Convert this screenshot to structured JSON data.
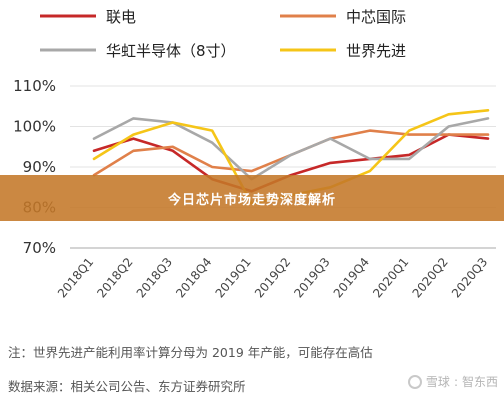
{
  "chart_data": {
    "type": "line",
    "title": "",
    "categories": [
      "2018Q1",
      "2018Q2",
      "2018Q3",
      "2018Q4",
      "2019Q1",
      "2019Q2",
      "2019Q3",
      "2019Q4",
      "2020Q1",
      "2020Q2",
      "2020Q3"
    ],
    "series": [
      {
        "name": "联电",
        "color": "#c62828",
        "values": [
          94,
          97,
          94,
          87,
          84,
          88,
          91,
          92,
          93,
          98,
          97
        ]
      },
      {
        "name": "中芯国际",
        "color": "#e0804a",
        "values": [
          88,
          94,
          95,
          90,
          89,
          93,
          97,
          99,
          98,
          98,
          98
        ]
      },
      {
        "name": "华虹半导体（8寸）",
        "color": "#a8a8a8",
        "values": [
          97,
          102,
          101,
          96,
          87,
          93,
          97,
          92,
          92,
          100,
          102
        ]
      },
      {
        "name": "世界先进",
        "color": "#f5c518",
        "values": [
          92,
          98,
          101,
          99,
          81,
          83,
          85,
          89,
          99,
          103,
          104
        ]
      }
    ],
    "yticks": [
      "110%",
      "100%",
      "90%",
      "80%",
      "70%"
    ],
    "ylim": [
      70,
      110
    ],
    "xlabel": "",
    "ylabel": "",
    "grid": true,
    "legend_position": "top"
  },
  "banner": {
    "text": "今日芯片市场走势深度解析"
  },
  "footer": {
    "note": "注：世界先进产能利用率计算分母为 2019 年产能，可能存在高估",
    "source": "数据来源：相关公司公告、东方证券研究所",
    "watermark_brand": "雪球",
    "watermark_author": "智东西"
  }
}
